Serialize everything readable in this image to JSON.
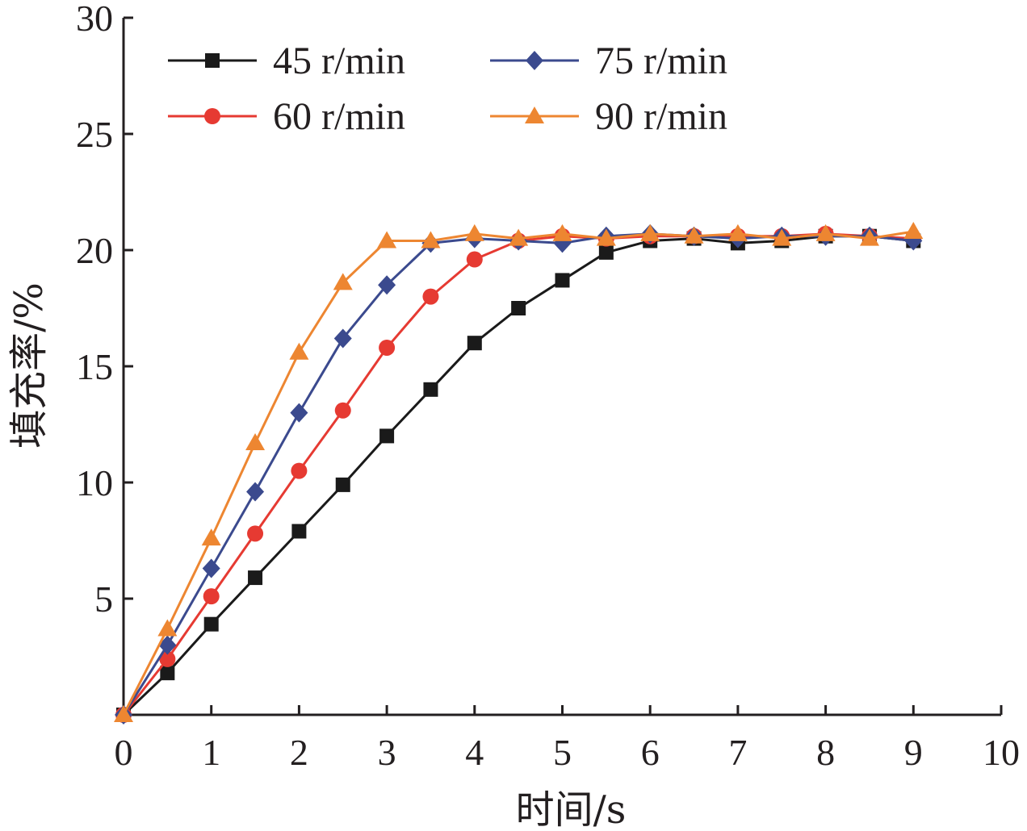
{
  "chart_data": {
    "type": "line",
    "xlabel": "时间/s",
    "ylabel": "填充率/%",
    "xlim": [
      0,
      10
    ],
    "ylim": [
      0,
      30
    ],
    "x_ticks": [
      0,
      1,
      2,
      3,
      4,
      5,
      6,
      7,
      8,
      9,
      10
    ],
    "y_ticks": [
      5,
      10,
      15,
      20,
      25,
      30
    ],
    "grid": false,
    "legend_position": "top-left",
    "x": [
      0,
      0.5,
      1,
      1.5,
      2,
      2.5,
      3,
      3.5,
      4,
      4.5,
      5,
      5.5,
      6,
      6.5,
      7,
      7.5,
      8,
      8.5,
      9
    ],
    "series": [
      {
        "name": "45 r/min",
        "color": "#1a1a1a",
        "marker": "square",
        "values": [
          0,
          1.8,
          3.9,
          5.9,
          7.9,
          9.9,
          12.0,
          14.0,
          16.0,
          17.5,
          18.7,
          19.9,
          20.4,
          20.5,
          20.3,
          20.4,
          20.6,
          20.6,
          20.4
        ]
      },
      {
        "name": "60 r/min",
        "color": "#e63a32",
        "marker": "circle",
        "values": [
          0,
          2.4,
          5.1,
          7.8,
          10.5,
          13.1,
          15.8,
          18.0,
          19.6,
          20.4,
          20.6,
          20.5,
          20.6,
          20.6,
          20.6,
          20.6,
          20.7,
          20.6,
          20.5
        ]
      },
      {
        "name": "75 r/min",
        "color": "#3b4a8e",
        "marker": "diamond",
        "values": [
          0,
          3.0,
          6.3,
          9.6,
          13.0,
          16.2,
          18.5,
          20.3,
          20.5,
          20.4,
          20.3,
          20.6,
          20.7,
          20.6,
          20.5,
          20.6,
          20.6,
          20.6,
          20.4
        ]
      },
      {
        "name": "90 r/min",
        "color": "#ed8631",
        "marker": "triangle",
        "values": [
          0,
          3.7,
          7.6,
          11.7,
          15.6,
          18.6,
          20.4,
          20.4,
          20.7,
          20.5,
          20.7,
          20.5,
          20.7,
          20.6,
          20.7,
          20.5,
          20.7,
          20.5,
          20.8
        ]
      }
    ]
  }
}
